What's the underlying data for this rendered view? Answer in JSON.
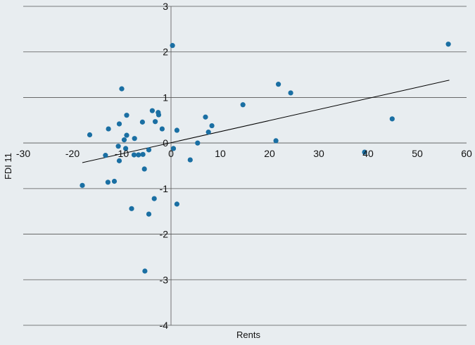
{
  "chart_data": {
    "type": "scatter",
    "title": "",
    "xlabel": "Rents",
    "ylabel": "FDI 11",
    "xlim": [
      -30,
      60
    ],
    "ylim": [
      -4,
      3
    ],
    "x_ticks": [
      -30,
      -20,
      -10,
      0,
      10,
      20,
      30,
      40,
      50,
      60
    ],
    "y_ticks": [
      -4,
      -3,
      -2,
      -1,
      0,
      1,
      2,
      3
    ],
    "x_tick_labels": [
      "-30",
      "-20",
      "-10",
      "0",
      "10",
      "20",
      "30",
      "40",
      "50",
      "60"
    ],
    "y_tick_labels": [
      "-4",
      "-3",
      "-2",
      "-1",
      "0",
      "1",
      "2",
      "3"
    ],
    "grid": "horizontal",
    "legend": "none",
    "point_color": "#1a6fa3",
    "trendline_color": "#000000",
    "points": [
      {
        "x": 0.3,
        "y": 2.14
      },
      {
        "x": 56.3,
        "y": 2.17
      },
      {
        "x": -10.0,
        "y": 1.19
      },
      {
        "x": 21.8,
        "y": 1.29
      },
      {
        "x": 24.3,
        "y": 1.1
      },
      {
        "x": 14.6,
        "y": 0.84
      },
      {
        "x": -3.8,
        "y": 0.71
      },
      {
        "x": -2.6,
        "y": 0.67
      },
      {
        "x": -2.5,
        "y": 0.62
      },
      {
        "x": -9.0,
        "y": 0.61
      },
      {
        "x": 7.0,
        "y": 0.57
      },
      {
        "x": 44.9,
        "y": 0.53
      },
      {
        "x": -5.8,
        "y": 0.46
      },
      {
        "x": -3.2,
        "y": 0.47
      },
      {
        "x": -10.5,
        "y": 0.42
      },
      {
        "x": 8.3,
        "y": 0.38
      },
      {
        "x": -12.7,
        "y": 0.31
      },
      {
        "x": -1.8,
        "y": 0.31
      },
      {
        "x": 1.2,
        "y": 0.28
      },
      {
        "x": 7.6,
        "y": 0.24
      },
      {
        "x": -16.5,
        "y": 0.18
      },
      {
        "x": -9.0,
        "y": 0.17
      },
      {
        "x": -7.4,
        "y": 0.1
      },
      {
        "x": -9.5,
        "y": 0.07
      },
      {
        "x": 21.3,
        "y": 0.05
      },
      {
        "x": 5.4,
        "y": 0.0
      },
      {
        "x": -10.7,
        "y": -0.07
      },
      {
        "x": -9.2,
        "y": -0.12
      },
      {
        "x": 0.5,
        "y": -0.12
      },
      {
        "x": -4.5,
        "y": -0.15
      },
      {
        "x": 39.3,
        "y": -0.2
      },
      {
        "x": -7.5,
        "y": -0.26
      },
      {
        "x": -6.6,
        "y": -0.26
      },
      {
        "x": -5.7,
        "y": -0.25
      },
      {
        "x": -13.3,
        "y": -0.27
      },
      {
        "x": -10.5,
        "y": -0.39
      },
      {
        "x": 3.9,
        "y": -0.37
      },
      {
        "x": -5.4,
        "y": -0.57
      },
      {
        "x": -12.8,
        "y": -0.86
      },
      {
        "x": -11.5,
        "y": -0.84
      },
      {
        "x": -18.0,
        "y": -0.93
      },
      {
        "x": -3.4,
        "y": -1.22
      },
      {
        "x": 1.2,
        "y": -1.34
      },
      {
        "x": -8.0,
        "y": -1.44
      },
      {
        "x": -4.5,
        "y": -1.56
      },
      {
        "x": -5.3,
        "y": -2.81
      }
    ],
    "trendline": {
      "x1": -18,
      "y1": -0.43,
      "x2": 56.5,
      "y2": 1.38
    }
  }
}
